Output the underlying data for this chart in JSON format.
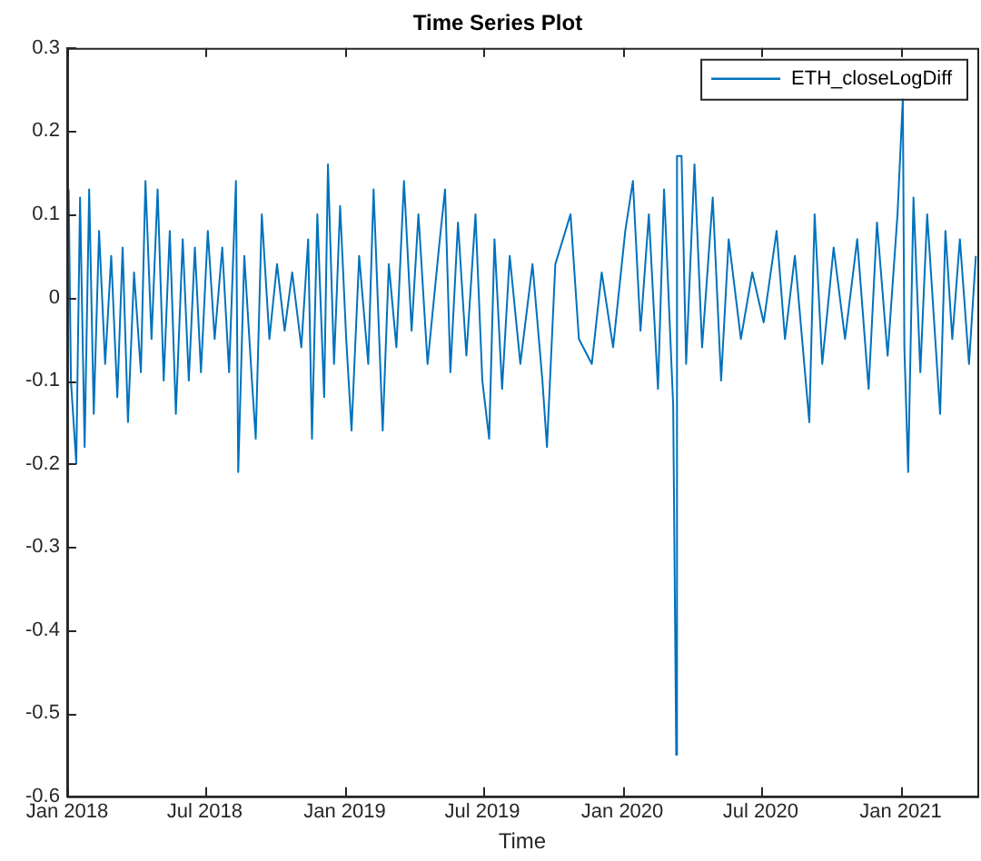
{
  "chart_data": {
    "type": "line",
    "title": "Time Series Plot",
    "xlabel": "Time",
    "x": [
      "2018-01-03",
      "2018-01-06",
      "2018-01-13",
      "2018-01-18",
      "2018-01-24",
      "2018-01-30",
      "2018-02-05",
      "2018-02-12",
      "2018-02-20",
      "2018-02-28",
      "2018-03-08",
      "2018-03-15",
      "2018-03-22",
      "2018-03-30",
      "2018-04-08",
      "2018-04-14",
      "2018-04-22",
      "2018-04-30",
      "2018-05-08",
      "2018-05-16",
      "2018-05-24",
      "2018-06-02",
      "2018-06-10",
      "2018-06-18",
      "2018-06-26",
      "2018-07-05",
      "2018-07-14",
      "2018-07-24",
      "2018-08-02",
      "2018-08-11",
      "2018-08-14",
      "2018-08-22",
      "2018-09-01",
      "2018-09-06",
      "2018-09-14",
      "2018-09-24",
      "2018-10-04",
      "2018-10-14",
      "2018-10-24",
      "2018-11-05",
      "2018-11-14",
      "2018-11-19",
      "2018-11-26",
      "2018-12-05",
      "2018-12-10",
      "2018-12-18",
      "2018-12-26",
      "2019-01-03",
      "2019-01-10",
      "2019-01-20",
      "2019-02-01",
      "2019-02-08",
      "2019-02-20",
      "2019-02-28",
      "2019-03-10",
      "2019-03-20",
      "2019-03-30",
      "2019-04-08",
      "2019-04-20",
      "2019-05-05",
      "2019-05-13",
      "2019-05-20",
      "2019-05-30",
      "2019-06-10",
      "2019-06-22",
      "2019-07-01",
      "2019-07-10",
      "2019-07-17",
      "2019-07-27",
      "2019-08-06",
      "2019-08-20",
      "2019-09-05",
      "2019-09-18",
      "2019-09-24",
      "2019-10-05",
      "2019-10-25",
      "2019-11-05",
      "2019-11-22",
      "2019-12-05",
      "2019-12-20",
      "2020-01-05",
      "2020-01-15",
      "2020-01-25",
      "2020-02-05",
      "2020-02-17",
      "2020-02-25",
      "2020-03-08",
      "2020-03-12",
      "2020-03-13",
      "2020-03-19",
      "2020-03-25",
      "2020-04-05",
      "2020-04-15",
      "2020-04-29",
      "2020-05-10",
      "2020-05-20",
      "2020-06-05",
      "2020-06-20",
      "2020-07-05",
      "2020-07-22",
      "2020-08-02",
      "2020-08-15",
      "2020-09-03",
      "2020-09-10",
      "2020-09-20",
      "2020-10-05",
      "2020-10-20",
      "2020-11-05",
      "2020-11-20",
      "2020-12-01",
      "2020-12-15",
      "2020-12-28",
      "2021-01-04",
      "2021-01-06",
      "2021-01-11",
      "2021-01-18",
      "2021-01-27",
      "2021-02-05",
      "2021-02-22",
      "2021-03-01",
      "2021-03-10",
      "2021-03-20",
      "2021-04-01",
      "2021-04-10"
    ],
    "series": [
      {
        "name": "ETH_closeLogDiff",
        "color": "#0072bd",
        "values": [
          0.13,
          -0.1,
          -0.2,
          0.12,
          -0.18,
          0.13,
          -0.14,
          0.08,
          -0.08,
          0.05,
          -0.12,
          0.06,
          -0.15,
          0.03,
          -0.09,
          0.14,
          -0.05,
          0.13,
          -0.1,
          0.08,
          -0.14,
          0.07,
          -0.1,
          0.06,
          -0.09,
          0.08,
          -0.05,
          0.06,
          -0.09,
          0.14,
          -0.21,
          0.05,
          -0.1,
          -0.17,
          0.1,
          -0.05,
          0.04,
          -0.04,
          0.03,
          -0.06,
          0.07,
          -0.17,
          0.1,
          -0.12,
          0.16,
          -0.08,
          0.11,
          -0.05,
          -0.16,
          0.05,
          -0.08,
          0.13,
          -0.16,
          0.04,
          -0.06,
          0.14,
          -0.04,
          0.1,
          -0.08,
          0.06,
          0.13,
          -0.09,
          0.09,
          -0.07,
          0.1,
          -0.1,
          -0.17,
          0.07,
          -0.11,
          0.05,
          -0.08,
          0.04,
          -0.1,
          -0.18,
          0.04,
          0.1,
          -0.05,
          -0.08,
          0.03,
          -0.06,
          0.08,
          0.14,
          -0.04,
          0.1,
          -0.11,
          0.13,
          -0.13,
          -0.55,
          0.17,
          0.17,
          -0.08,
          0.16,
          -0.06,
          0.12,
          -0.1,
          0.07,
          -0.05,
          0.03,
          -0.03,
          0.08,
          -0.05,
          0.05,
          -0.15,
          0.1,
          -0.08,
          0.06,
          -0.05,
          0.07,
          -0.11,
          0.09,
          -0.07,
          0.1,
          0.24,
          -0.06,
          -0.21,
          0.12,
          -0.09,
          0.1,
          -0.14,
          0.08,
          -0.05,
          0.07,
          -0.08,
          0.05
        ]
      }
    ],
    "xlim": [
      "2018-01-01",
      "2021-04-12"
    ],
    "xticks": [
      {
        "value": "2018-01-01",
        "label": "Jan 2018"
      },
      {
        "value": "2018-07-01",
        "label": "Jul 2018"
      },
      {
        "value": "2019-01-01",
        "label": "Jan 2019"
      },
      {
        "value": "2019-07-01",
        "label": "Jul 2019"
      },
      {
        "value": "2020-01-01",
        "label": "Jan 2020"
      },
      {
        "value": "2020-07-01",
        "label": "Jul 2020"
      },
      {
        "value": "2021-01-01",
        "label": "Jan 2021"
      }
    ],
    "ylim": [
      -0.6,
      0.3
    ],
    "yticks": [
      -0.6,
      -0.5,
      -0.4,
      -0.3,
      -0.2,
      -0.1,
      0,
      0.1,
      0.2,
      0.3
    ],
    "grid": false,
    "legend": "top right",
    "marker": "none",
    "line_style": "solid"
  }
}
